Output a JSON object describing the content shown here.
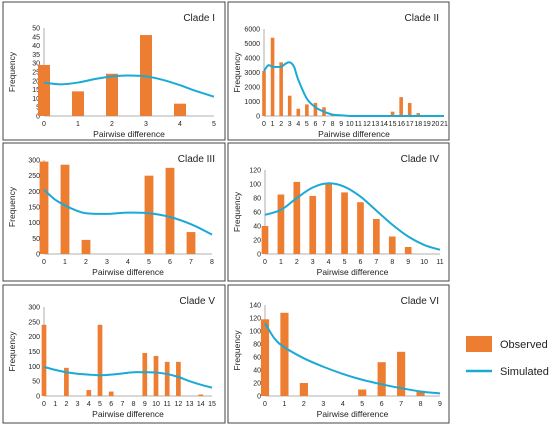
{
  "legend": {
    "observed_label": "Observed",
    "simulated_label": "Simulated",
    "observed_color": "#ED7D31",
    "simulated_color": "#1BA9D6"
  },
  "chart_data": [
    {
      "type": "bar",
      "title": "Clade I",
      "xlabel": "Pairwise difference",
      "ylabel": "Frequency",
      "x_ticks": [
        0,
        1,
        2,
        3,
        4,
        5
      ],
      "xlim": [
        0,
        5
      ],
      "y_ticks": [
        0,
        5,
        10,
        15,
        20,
        25,
        30,
        35,
        40,
        45,
        50
      ],
      "ylim": [
        0,
        50
      ],
      "series": [
        {
          "name": "Observed",
          "type": "bar",
          "x": [
            0,
            1,
            2,
            3,
            4
          ],
          "values": [
            29,
            14,
            24,
            46,
            7
          ]
        },
        {
          "name": "Simulated",
          "type": "line",
          "x": [
            0,
            0.5,
            1,
            1.5,
            2,
            2.5,
            3,
            3.5,
            4,
            4.5,
            5
          ],
          "values": [
            19,
            18,
            19,
            21,
            22.5,
            23,
            22.5,
            20.5,
            17.5,
            14,
            11
          ]
        }
      ]
    },
    {
      "type": "bar",
      "title": "Clade II",
      "xlabel": "Pairwise difference",
      "ylabel": "Frequency",
      "x_ticks": [
        0,
        1,
        2,
        3,
        4,
        5,
        6,
        7,
        8,
        9,
        10,
        11,
        12,
        13,
        14,
        15,
        16,
        17,
        18,
        19,
        20,
        21
      ],
      "xlim": [
        0,
        21
      ],
      "y_ticks": [
        0,
        1000,
        2000,
        3000,
        4000,
        5000,
        6000
      ],
      "ylim": [
        0,
        6000
      ],
      "series": [
        {
          "name": "Observed",
          "type": "bar",
          "x": [
            0,
            1,
            2,
            3,
            4,
            5,
            6,
            7,
            8,
            9,
            10,
            11,
            12,
            13,
            14,
            15,
            16,
            17,
            18,
            19,
            20,
            21
          ],
          "values": [
            3100,
            5400,
            3700,
            1400,
            500,
            800,
            900,
            600,
            100,
            0,
            0,
            0,
            0,
            0,
            0,
            300,
            1300,
            900,
            200,
            0,
            0,
            0
          ]
        },
        {
          "name": "Simulated",
          "type": "line",
          "x": [
            0,
            0.5,
            1,
            2,
            2.5,
            3,
            3.5,
            4,
            5,
            6,
            7,
            8,
            9,
            10,
            12,
            15,
            21
          ],
          "values": [
            3100,
            3500,
            3400,
            3400,
            3600,
            3700,
            3400,
            2500,
            1200,
            600,
            300,
            100,
            50,
            0,
            0,
            0,
            0
          ]
        }
      ]
    },
    {
      "type": "bar",
      "title": "Clade III",
      "xlabel": "Pairwise difference",
      "ylabel": "Frequency",
      "x_ticks": [
        0,
        1,
        2,
        3,
        4,
        5,
        6,
        7,
        8
      ],
      "xlim": [
        0,
        8
      ],
      "y_ticks": [
        0,
        50,
        100,
        150,
        200,
        250,
        300
      ],
      "ylim": [
        0,
        300
      ],
      "series": [
        {
          "name": "Observed",
          "type": "bar",
          "x": [
            0,
            1,
            2,
            3,
            4,
            5,
            6,
            7,
            8
          ],
          "values": [
            295,
            285,
            45,
            0,
            0,
            250,
            275,
            70,
            0
          ]
        },
        {
          "name": "Simulated",
          "type": "line",
          "x": [
            0,
            0.5,
            1,
            1.5,
            2,
            3,
            4,
            5,
            6,
            7,
            8
          ],
          "values": [
            205,
            175,
            155,
            140,
            130,
            128,
            132,
            130,
            118,
            95,
            62
          ]
        }
      ]
    },
    {
      "type": "bar",
      "title": "Clade IV",
      "xlabel": "Pairwise difference",
      "ylabel": "Frequency",
      "x_ticks": [
        0,
        1,
        2,
        3,
        4,
        5,
        6,
        7,
        8,
        9,
        10,
        11
      ],
      "xlim": [
        0,
        11
      ],
      "y_ticks": [
        0,
        20,
        40,
        60,
        80,
        100,
        120
      ],
      "ylim": [
        0,
        120
      ],
      "series": [
        {
          "name": "Observed",
          "type": "bar",
          "x": [
            0,
            1,
            2,
            3,
            4,
            5,
            6,
            7,
            8,
            9,
            10,
            11
          ],
          "values": [
            40,
            85,
            103,
            83,
            100,
            88,
            74,
            50,
            25,
            10,
            0,
            0
          ]
        },
        {
          "name": "Simulated",
          "type": "line",
          "x": [
            0,
            1,
            2,
            3,
            4,
            5,
            6,
            7,
            8,
            9,
            10,
            11
          ],
          "values": [
            56,
            63,
            80,
            95,
            101,
            96,
            82,
            62,
            42,
            25,
            13,
            6
          ]
        }
      ]
    },
    {
      "type": "bar",
      "title": "Clade V",
      "xlabel": "Pairwise difference",
      "ylabel": "Frequency",
      "x_ticks": [
        0,
        1,
        2,
        3,
        4,
        5,
        6,
        7,
        8,
        9,
        10,
        11,
        12,
        13,
        14,
        15
      ],
      "xlim": [
        0,
        15
      ],
      "y_ticks": [
        0,
        50,
        100,
        150,
        200,
        250,
        300
      ],
      "ylim": [
        0,
        300
      ],
      "series": [
        {
          "name": "Observed",
          "type": "bar",
          "x": [
            0,
            1,
            2,
            3,
            4,
            5,
            6,
            7,
            8,
            9,
            10,
            11,
            12,
            13,
            14,
            15
          ],
          "values": [
            240,
            0,
            95,
            0,
            20,
            240,
            15,
            0,
            0,
            145,
            135,
            115,
            115,
            0,
            5,
            0
          ]
        },
        {
          "name": "Simulated",
          "type": "line",
          "x": [
            0,
            1,
            2,
            3,
            4,
            5,
            6,
            7,
            8,
            9,
            10,
            11,
            12,
            13,
            14,
            15
          ],
          "values": [
            98,
            88,
            80,
            75,
            72,
            70,
            72,
            76,
            80,
            80,
            79,
            74,
            64,
            50,
            38,
            28
          ]
        }
      ]
    },
    {
      "type": "bar",
      "title": "Clade VI",
      "xlabel": "Pairwise difference",
      "ylabel": "Frequency",
      "x_ticks": [
        0,
        1,
        2,
        3,
        4,
        5,
        6,
        7,
        8,
        9
      ],
      "xlim": [
        0,
        9
      ],
      "y_ticks": [
        0,
        20,
        40,
        60,
        80,
        100,
        120,
        140
      ],
      "ylim": [
        0,
        140
      ],
      "series": [
        {
          "name": "Observed",
          "type": "bar",
          "x": [
            0,
            1,
            2,
            3,
            4,
            5,
            6,
            7,
            8,
            9
          ],
          "values": [
            118,
            128,
            20,
            0,
            0,
            10,
            52,
            68,
            8,
            0
          ]
        },
        {
          "name": "Simulated",
          "type": "line",
          "x": [
            0,
            0.5,
            1,
            2,
            3,
            4,
            5,
            6,
            7,
            8,
            9
          ],
          "values": [
            112,
            88,
            75,
            58,
            45,
            34,
            25,
            18,
            12,
            7,
            4
          ]
        }
      ]
    }
  ]
}
